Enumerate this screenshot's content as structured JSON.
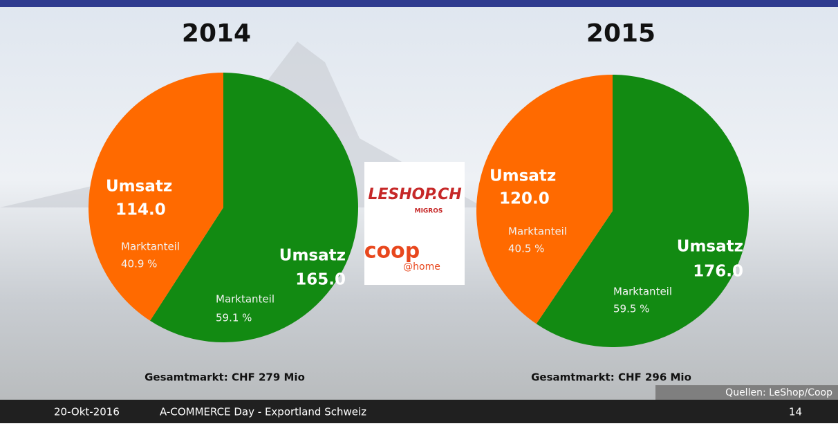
{
  "chart_data": [
    {
      "type": "pie",
      "title": "2014",
      "value_title": "Umsatz",
      "share_title": "Marktanteil",
      "values": [
        165,
        114
      ],
      "value_labels": [
        "165.0",
        "114.0"
      ],
      "shares": [
        59.1,
        40.9
      ],
      "share_labels": [
        "59.1 %",
        "40.9 %"
      ],
      "colors": [
        "#128a12",
        "#ff6a00"
      ],
      "caption": "Gesamtmarkt: CHF 279 Mio"
    },
    {
      "type": "pie",
      "title": "2015",
      "value_title": "Umsatz",
      "share_title": "Marktanteil",
      "values": [
        176,
        120
      ],
      "value_labels": [
        "176.0",
        "120.0"
      ],
      "shares": [
        59.5,
        40.5
      ],
      "share_labels": [
        "59.5 %",
        "40.5 %"
      ],
      "colors": [
        "#128a12",
        "#ff6a00"
      ],
      "caption": "Gesamtmarkt: CHF 296 Mio"
    }
  ],
  "logos": {
    "leshop": "LESHOP.CH",
    "migros": "MIGROS",
    "coop": "coop",
    "home": "@home"
  },
  "source": "Quellen: LeShop/Coop",
  "footer": {
    "date": "20-Okt-2016",
    "event": "A-COMMERCE Day - Exportland Schweiz",
    "page": "14"
  }
}
